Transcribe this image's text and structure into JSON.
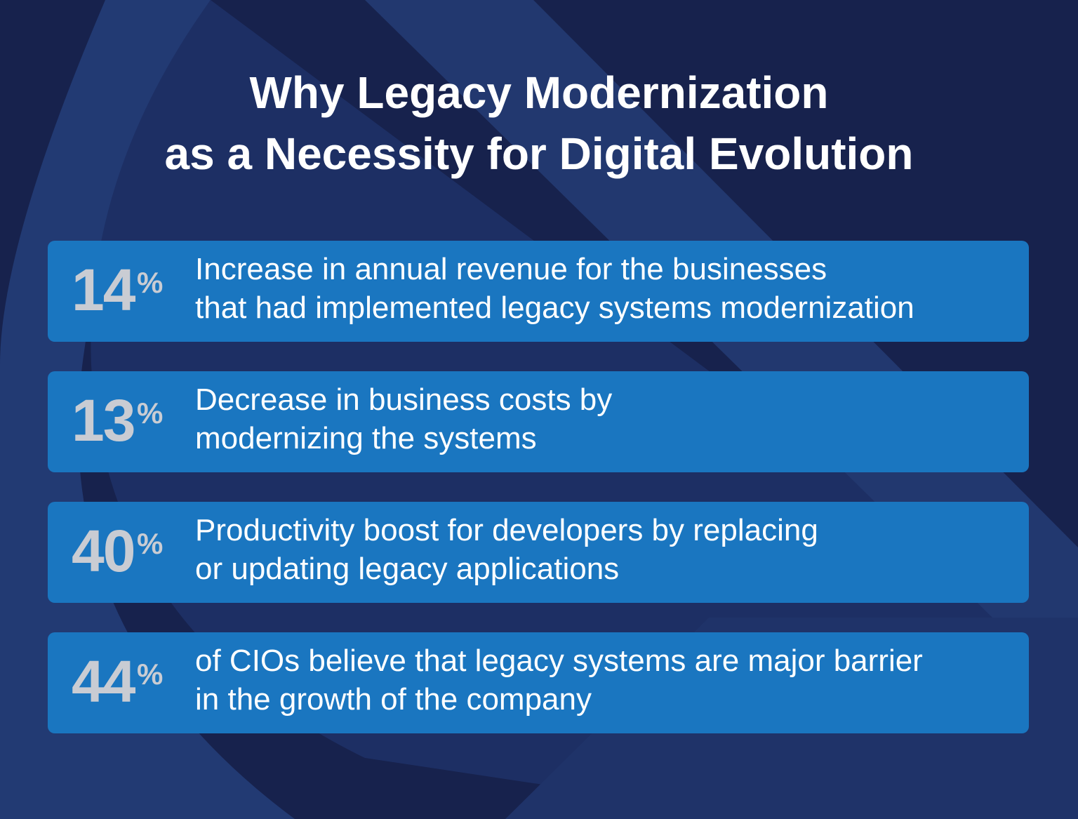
{
  "title": [
    "Why Legacy Modernization",
    "as a Necessity for Digital Evolution"
  ],
  "items": [
    {
      "number": 14,
      "unit": "%",
      "lines": [
        "Increase in annual revenue for the businesses",
        "that had implemented legacy systems modernization"
      ]
    },
    {
      "number": 13,
      "unit": "%",
      "lines": [
        "Decrease in business costs by",
        "modernizing the systems"
      ]
    },
    {
      "number": 40,
      "unit": "%",
      "lines": [
        "Productivity boost for developers by replacing",
        "or updating legacy applications"
      ]
    },
    {
      "number": 44,
      "unit": "%",
      "lines": [
        "of CIOs believe that legacy systems are major barrier",
        "in the growth of the company"
      ]
    }
  ]
}
